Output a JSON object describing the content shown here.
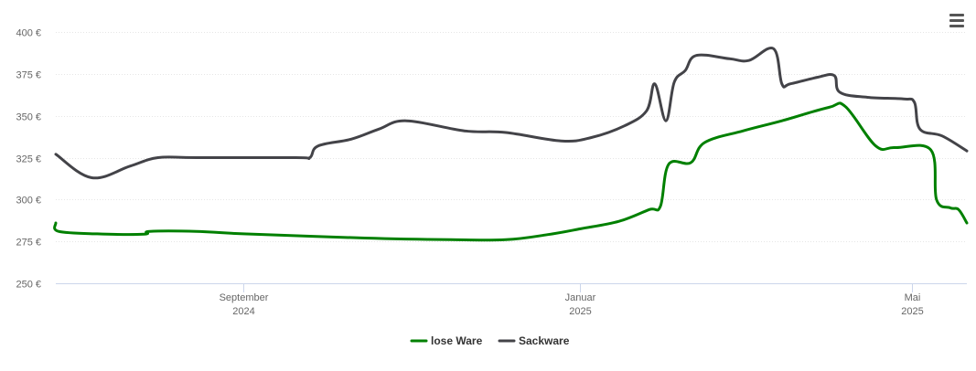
{
  "chart_data": {
    "type": "line",
    "currency_symbol": "€",
    "ylim": [
      250,
      400
    ],
    "yticks": [
      "400 €",
      "375 €",
      "350 €",
      "325 €",
      "300 €",
      "275 €",
      "250 €"
    ],
    "ytick_values": [
      400,
      375,
      350,
      325,
      300,
      275,
      250
    ],
    "xlim": [
      "2024-06-25",
      "2025-05-21"
    ],
    "xticks": [
      {
        "date": "2024-09-01",
        "month": "September",
        "year": "2024"
      },
      {
        "date": "2025-01-01",
        "month": "Januar",
        "year": "2025"
      },
      {
        "date": "2025-05-01",
        "month": "Mai",
        "year": "2025"
      }
    ],
    "grid": true,
    "legend_position": "bottom",
    "series": [
      {
        "name": "lose Ware",
        "color": "#008000",
        "points": [
          [
            "2024-06-25",
            286
          ],
          [
            "2024-06-26",
            281
          ],
          [
            "2024-07-10",
            279.5
          ],
          [
            "2024-07-27",
            279.3
          ],
          [
            "2024-07-29",
            281
          ],
          [
            "2024-08-15",
            281
          ],
          [
            "2024-09-01",
            279.5
          ],
          [
            "2024-10-15",
            277
          ],
          [
            "2024-11-15",
            276
          ],
          [
            "2024-12-05",
            276
          ],
          [
            "2024-12-20",
            279
          ],
          [
            "2025-01-01",
            282.5
          ],
          [
            "2025-01-15",
            287
          ],
          [
            "2025-01-26",
            294
          ],
          [
            "2025-01-30",
            296
          ],
          [
            "2025-02-02",
            321
          ],
          [
            "2025-02-10",
            322
          ],
          [
            "2025-02-15",
            334
          ],
          [
            "2025-03-01",
            341
          ],
          [
            "2025-03-15",
            347
          ],
          [
            "2025-04-01",
            355
          ],
          [
            "2025-04-07",
            355.5
          ],
          [
            "2025-04-18",
            332
          ],
          [
            "2025-04-25",
            331
          ],
          [
            "2025-05-08",
            329.5
          ],
          [
            "2025-05-10",
            300
          ],
          [
            "2025-05-15",
            295
          ],
          [
            "2025-05-18",
            294
          ],
          [
            "2025-05-21",
            286
          ]
        ]
      },
      {
        "name": "Sackware",
        "color": "#434348",
        "points": [
          [
            "2024-06-25",
            327
          ],
          [
            "2024-07-08",
            313
          ],
          [
            "2024-07-22",
            320
          ],
          [
            "2024-08-01",
            325
          ],
          [
            "2024-08-15",
            325
          ],
          [
            "2024-09-20",
            325
          ],
          [
            "2024-09-25",
            325
          ],
          [
            "2024-09-28",
            332
          ],
          [
            "2024-10-10",
            336
          ],
          [
            "2024-10-20",
            342
          ],
          [
            "2024-10-30",
            347
          ],
          [
            "2024-11-20",
            341
          ],
          [
            "2024-12-05",
            340
          ],
          [
            "2024-12-25",
            335
          ],
          [
            "2025-01-05",
            337
          ],
          [
            "2025-01-17",
            344
          ],
          [
            "2025-01-25",
            353
          ],
          [
            "2025-01-28",
            369
          ],
          [
            "2025-02-01",
            347
          ],
          [
            "2025-02-04",
            370
          ],
          [
            "2025-02-08",
            377
          ],
          [
            "2025-02-12",
            386
          ],
          [
            "2025-02-24",
            384
          ],
          [
            "2025-03-03",
            383
          ],
          [
            "2025-03-12",
            390
          ],
          [
            "2025-03-15",
            369
          ],
          [
            "2025-03-18",
            369
          ],
          [
            "2025-03-28",
            373
          ],
          [
            "2025-04-03",
            374
          ],
          [
            "2025-04-05",
            364
          ],
          [
            "2025-04-15",
            361
          ],
          [
            "2025-04-28",
            360
          ],
          [
            "2025-05-02",
            358
          ],
          [
            "2025-05-04",
            342
          ],
          [
            "2025-05-12",
            338
          ],
          [
            "2025-05-21",
            329
          ]
        ]
      }
    ]
  }
}
